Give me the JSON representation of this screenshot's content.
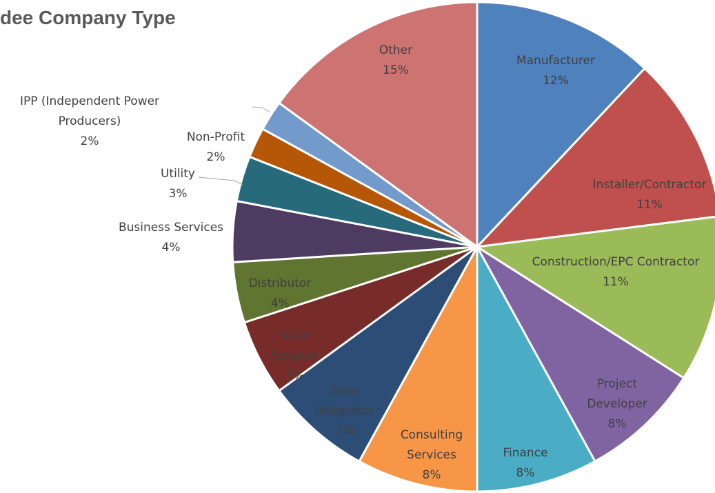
{
  "chart_data": {
    "type": "pie",
    "title": "dee Company Type",
    "categories": [
      "Manufacturer",
      "Installer/Contractor",
      "Construction/EPC Contractor",
      "Project Developer",
      "Finance",
      "Consulting Services",
      "Solar Integrator",
      "Solar Supplier",
      "Distributor",
      "Business Services",
      "Utility",
      "Non-Profit",
      "IPP (Independent Power Producers)",
      "Other"
    ],
    "values": [
      12,
      11,
      11,
      8,
      8,
      8,
      7,
      5,
      4,
      4,
      3,
      2,
      2,
      15
    ],
    "value_labels": [
      "12%",
      "11%",
      "11%",
      "8%",
      "8%",
      "8%",
      "7%",
      "5%",
      "4%",
      "4%",
      "3%",
      "2%",
      "2%",
      "15%"
    ],
    "colors": [
      "#4f81bd",
      "#c0504d",
      "#9bbb59",
      "#8064a2",
      "#4bacc6",
      "#f79646",
      "#2c4d75",
      "#772c2a",
      "#5f7530",
      "#4d3b62",
      "#276a7c",
      "#b65708",
      "#729aca",
      "#cd7371"
    ]
  }
}
